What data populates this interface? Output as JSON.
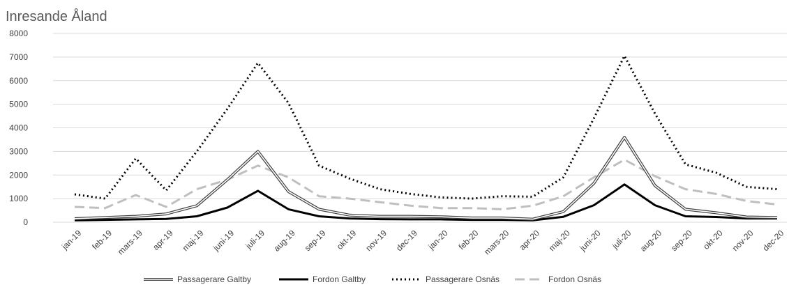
{
  "chart_data": {
    "type": "line",
    "title": "Inresande Åland",
    "xlabel": "",
    "ylabel": "",
    "ylim": [
      0,
      8000
    ],
    "yticks": [
      0,
      1000,
      2000,
      3000,
      4000,
      5000,
      6000,
      7000,
      8000
    ],
    "grid": "horizontal",
    "legend_position": "bottom",
    "categories": [
      "jan-19",
      "feb-19",
      "mars-19",
      "apr-19",
      "maj-19",
      "juni-19",
      "juli-19",
      "aug-19",
      "sep-19",
      "okt-19",
      "nov-19",
      "dec-19",
      "jan-20",
      "feb-20",
      "mars-20",
      "apr-20",
      "maj-20",
      "juni-20",
      "juli-20",
      "aug-20",
      "sep-20",
      "okt-20",
      "nov-20",
      "dec-20"
    ],
    "series": [
      {
        "name": "Passagerare Galtby",
        "style": "double",
        "color": "#404040",
        "values": [
          150,
          200,
          250,
          350,
          700,
          1800,
          3000,
          1300,
          550,
          300,
          250,
          250,
          230,
          180,
          180,
          130,
          450,
          1650,
          3600,
          1550,
          550,
          400,
          220,
          200
        ]
      },
      {
        "name": "Fordon Galtby",
        "style": "solid",
        "color": "#000000",
        "values": [
          80,
          100,
          120,
          140,
          250,
          620,
          1330,
          550,
          250,
          160,
          130,
          120,
          120,
          100,
          100,
          80,
          230,
          720,
          1600,
          720,
          250,
          220,
          160,
          160
        ]
      },
      {
        "name": "Passagerare Osnäs",
        "style": "dotted",
        "color": "#000000",
        "values": [
          1180,
          1000,
          2700,
          1350,
          3000,
          4800,
          6750,
          5050,
          2400,
          1850,
          1400,
          1200,
          1050,
          1000,
          1100,
          1080,
          1900,
          4400,
          7050,
          4600,
          2450,
          2100,
          1500,
          1400
        ]
      },
      {
        "name": "Fordon Osnäs",
        "style": "dashed",
        "color": "#bfbfbf",
        "values": [
          650,
          600,
          1150,
          650,
          1400,
          1800,
          2400,
          1900,
          1100,
          1000,
          850,
          700,
          600,
          600,
          550,
          700,
          1100,
          1900,
          2650,
          1950,
          1400,
          1200,
          900,
          750
        ]
      }
    ]
  }
}
